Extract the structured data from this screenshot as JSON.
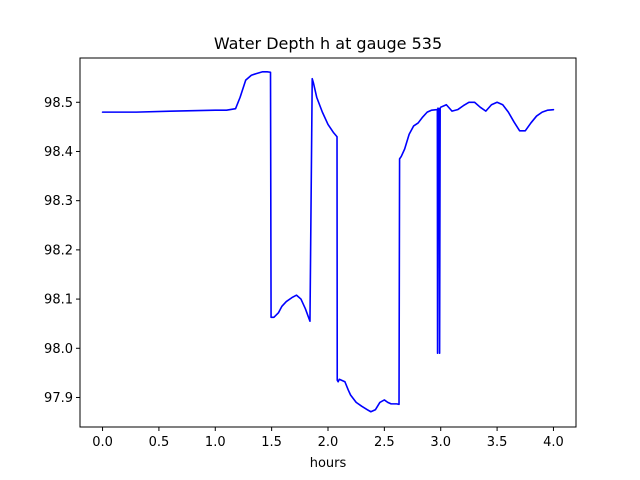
{
  "chart_data": {
    "type": "line",
    "title": "Water Depth h at gauge 535",
    "xlabel": "hours",
    "ylabel": "",
    "xlim": [
      -0.2,
      4.2
    ],
    "ylim": [
      97.84,
      98.59
    ],
    "xticks": [
      0.0,
      0.5,
      1.0,
      1.5,
      2.0,
      2.5,
      3.0,
      3.5,
      4.0
    ],
    "xtick_labels": [
      "0.0",
      "0.5",
      "1.0",
      "1.5",
      "2.0",
      "2.5",
      "3.0",
      "3.5",
      "4.0"
    ],
    "yticks": [
      97.9,
      98.0,
      98.1,
      98.2,
      98.3,
      98.4,
      98.5
    ],
    "ytick_labels": [
      "97.9",
      "98.0",
      "98.1",
      "98.2",
      "98.3",
      "98.4",
      "98.5"
    ],
    "grid": false,
    "line_color": "#0000ff",
    "series": [
      {
        "x": [
          0.0,
          0.3,
          0.6,
          0.8,
          1.0,
          1.1,
          1.18,
          1.22,
          1.27,
          1.32,
          1.36,
          1.42,
          1.46,
          1.49,
          1.495,
          1.52,
          1.56,
          1.59,
          1.63,
          1.68,
          1.72,
          1.76,
          1.8,
          1.84,
          1.86,
          1.87,
          1.9,
          1.95,
          2.0,
          2.05,
          2.08,
          2.082,
          2.09,
          2.1,
          2.15,
          2.18,
          2.2,
          2.25,
          2.3,
          2.35,
          2.38,
          2.42,
          2.46,
          2.5,
          2.53,
          2.56,
          2.59,
          2.61,
          2.63,
          2.635,
          2.65,
          2.68,
          2.72,
          2.76,
          2.8,
          2.84,
          2.88,
          2.92,
          2.96,
          2.97,
          2.972,
          2.975,
          2.985,
          2.99,
          2.995,
          3.0,
          3.05,
          3.1,
          3.15,
          3.2,
          3.25,
          3.3,
          3.35,
          3.4,
          3.45,
          3.5,
          3.55,
          3.6,
          3.65,
          3.7,
          3.75,
          3.8,
          3.85,
          3.9,
          3.95,
          4.0
        ],
        "y": [
          98.48,
          98.48,
          98.482,
          98.483,
          98.484,
          98.484,
          98.487,
          98.51,
          98.545,
          98.555,
          98.558,
          98.562,
          98.562,
          98.561,
          98.063,
          98.063,
          98.072,
          98.085,
          98.095,
          98.103,
          98.108,
          98.1,
          98.08,
          98.055,
          98.548,
          98.54,
          98.51,
          98.48,
          98.455,
          98.438,
          98.43,
          97.935,
          97.932,
          97.937,
          97.932,
          97.915,
          97.905,
          97.89,
          97.882,
          97.875,
          97.871,
          97.875,
          97.89,
          97.895,
          97.89,
          97.887,
          97.887,
          97.887,
          97.886,
          98.385,
          98.39,
          98.405,
          98.435,
          98.452,
          98.458,
          98.47,
          98.48,
          98.484,
          98.485,
          98.485,
          97.99,
          98.488,
          98.487,
          97.99,
          98.488,
          98.49,
          98.495,
          98.482,
          98.485,
          98.493,
          98.5,
          98.5,
          98.49,
          98.482,
          98.495,
          98.5,
          98.495,
          98.48,
          98.46,
          98.442,
          98.442,
          98.458,
          98.472,
          98.48,
          98.484,
          98.485
        ]
      }
    ]
  }
}
